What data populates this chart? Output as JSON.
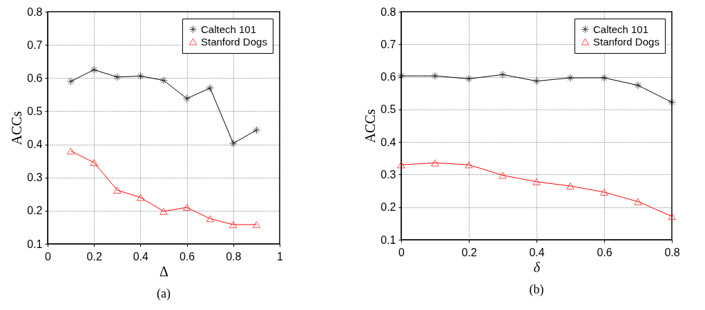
{
  "chart_data": [
    {
      "type": "line",
      "title": "(a)",
      "xlabel": "Δ",
      "ylabel": "ACCs",
      "xlim": [
        0,
        1
      ],
      "xticks": [
        0,
        0.2,
        0.4,
        0.6,
        0.8,
        1
      ],
      "ylim": [
        0.1,
        0.8
      ],
      "yticks": [
        0.1,
        0.2,
        0.3,
        0.4,
        0.5,
        0.6,
        0.7,
        0.8
      ],
      "grid": true,
      "legend": "top right",
      "line_style": "solid",
      "x": [
        0.1,
        0.2,
        0.3,
        0.4,
        0.5,
        0.6,
        0.7,
        0.8,
        0.9
      ],
      "series": [
        {
          "name": "Caltech 101",
          "color": "#000000",
          "marker": "cross",
          "values": [
            0.59,
            0.625,
            0.603,
            0.606,
            0.593,
            0.538,
            0.57,
            0.403,
            0.443
          ]
        },
        {
          "name": "Stanford Dogs",
          "color": "#ff0000",
          "marker": "triangle",
          "values": [
            0.38,
            0.345,
            0.262,
            0.24,
            0.198,
            0.21,
            0.176,
            0.158,
            0.158
          ]
        }
      ]
    },
    {
      "type": "line",
      "title": "(b)",
      "xlabel": "δ",
      "ylabel": "ACCs",
      "xlim": [
        0,
        0.8
      ],
      "xticks": [
        0,
        0.2,
        0.4,
        0.6,
        0.8
      ],
      "ylim": [
        0.1,
        0.8
      ],
      "yticks": [
        0.1,
        0.2,
        0.3,
        0.4,
        0.5,
        0.6,
        0.7,
        0.8
      ],
      "grid": true,
      "legend": "top right",
      "line_style": "solid",
      "x": [
        0,
        0.1,
        0.2,
        0.3,
        0.4,
        0.5,
        0.6,
        0.7,
        0.8
      ],
      "series": [
        {
          "name": "Caltech 101",
          "color": "#000000",
          "marker": "cross",
          "values": [
            0.603,
            0.603,
            0.594,
            0.607,
            0.587,
            0.597,
            0.597,
            0.574,
            0.522
          ]
        },
        {
          "name": "Stanford Dogs",
          "color": "#ff0000",
          "marker": "triangle",
          "values": [
            0.33,
            0.336,
            0.33,
            0.298,
            0.278,
            0.265,
            0.246,
            0.217,
            0.172
          ]
        }
      ]
    }
  ]
}
